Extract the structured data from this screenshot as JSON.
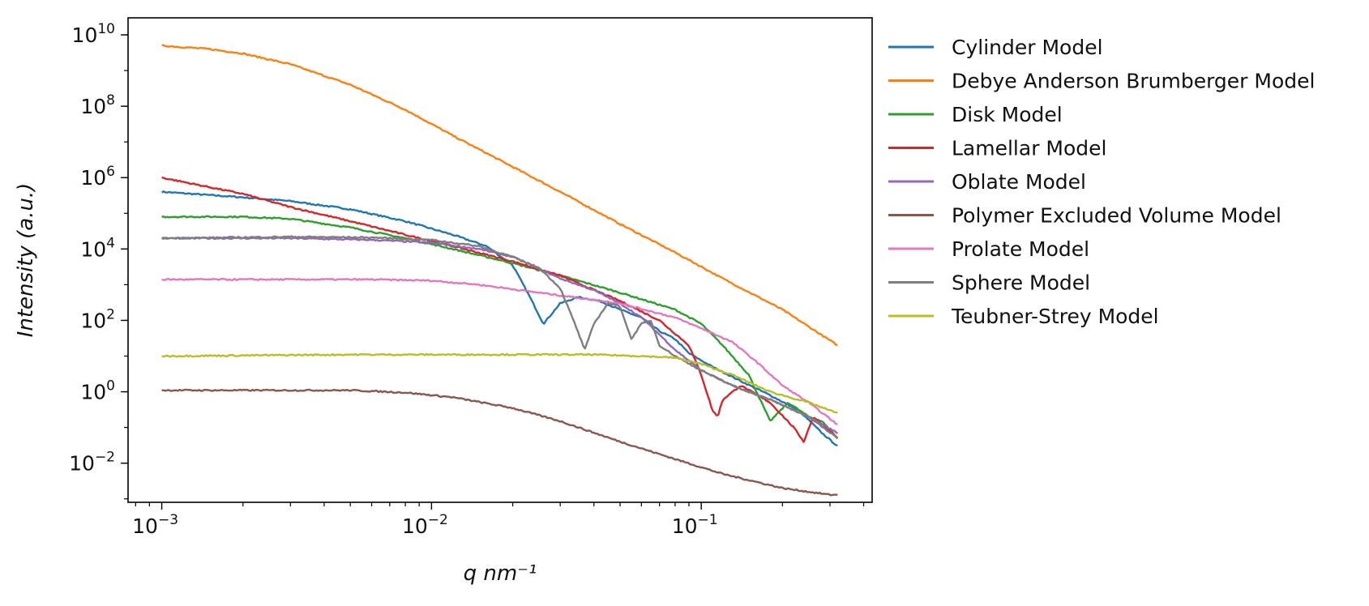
{
  "chart_data": {
    "type": "line",
    "xscale": "log",
    "yscale": "log",
    "xlabel": "q nm⁻¹",
    "ylabel": "Intensity (a.u.)",
    "xlim": [
      0.00075,
      0.43
    ],
    "ylim": [
      0.0008,
      30000000000
    ],
    "xticks": [
      {
        "value": 0.001,
        "base": "10",
        "exp": "−3"
      },
      {
        "value": 0.01,
        "base": "10",
        "exp": "−2"
      },
      {
        "value": 0.1,
        "base": "10",
        "exp": "−1"
      }
    ],
    "yticks": [
      {
        "value": 0.01,
        "base": "10",
        "exp": "−2"
      },
      {
        "value": 1,
        "base": "10",
        "exp": "0"
      },
      {
        "value": 100,
        "base": "10",
        "exp": "2"
      },
      {
        "value": 10000,
        "base": "10",
        "exp": "4"
      },
      {
        "value": 1000000,
        "base": "10",
        "exp": "6"
      },
      {
        "value": 100000000,
        "base": "10",
        "exp": "8"
      },
      {
        "value": 10000000000,
        "base": "10",
        "exp": "10"
      }
    ],
    "grid": false,
    "legend_position": "outside right",
    "series": [
      {
        "name": "Cylinder Model",
        "color": "#1f77b4",
        "x": [
          0.001,
          0.002,
          0.003,
          0.005,
          0.008,
          0.012,
          0.016,
          0.02,
          0.023,
          0.026,
          0.03,
          0.035,
          0.042,
          0.05,
          0.06,
          0.07,
          0.08,
          0.09,
          0.11,
          0.14,
          0.18,
          0.23,
          0.28,
          0.32
        ],
        "y": [
          400000,
          280000,
          220000,
          130000,
          60000,
          25000,
          12000,
          3500,
          500,
          80,
          300,
          450,
          350,
          200,
          120,
          50,
          30,
          12,
          5,
          2,
          0.8,
          0.3,
          0.07,
          0.03
        ]
      },
      {
        "name": "Debye Anderson Brumberger Model",
        "color": "#ff7f0e",
        "x": [
          0.001,
          0.0015,
          0.002,
          0.003,
          0.005,
          0.008,
          0.012,
          0.02,
          0.03,
          0.05,
          0.08,
          0.12,
          0.2,
          0.32
        ],
        "y": [
          5000000000,
          4000000000,
          3000000000,
          1500000000,
          400000000,
          80000000,
          15000000,
          2000000,
          400000,
          50000,
          8000,
          1500,
          200,
          20
        ]
      },
      {
        "name": "Disk Model",
        "color": "#2ca02c",
        "x": [
          0.001,
          0.002,
          0.003,
          0.005,
          0.008,
          0.012,
          0.02,
          0.03,
          0.05,
          0.08,
          0.1,
          0.12,
          0.15,
          0.18,
          0.21,
          0.25,
          0.28,
          0.32
        ],
        "y": [
          80000,
          80000,
          70000,
          40000,
          20000,
          10000,
          4000,
          1800,
          600,
          200,
          80,
          20,
          3,
          0.15,
          0.5,
          0.2,
          0.15,
          0.05
        ]
      },
      {
        "name": "Lamellar Model",
        "color": "#d62728",
        "x": [
          0.001,
          0.002,
          0.003,
          0.005,
          0.008,
          0.012,
          0.02,
          0.03,
          0.05,
          0.07,
          0.09,
          0.1,
          0.11,
          0.115,
          0.12,
          0.14,
          0.18,
          0.22,
          0.24,
          0.26,
          0.3,
          0.32
        ],
        "y": [
          1000000,
          350000,
          150000,
          60000,
          25000,
          12000,
          4500,
          1800,
          350,
          100,
          20,
          3,
          0.3,
          0.2,
          0.6,
          1.5,
          0.5,
          0.1,
          0.04,
          0.2,
          0.08,
          0.05
        ]
      },
      {
        "name": "Oblate Model",
        "color": "#9467bd",
        "x": [
          0.001,
          0.003,
          0.006,
          0.01,
          0.015,
          0.02,
          0.03,
          0.04,
          0.05,
          0.06,
          0.07,
          0.08,
          0.1,
          0.13,
          0.18,
          0.25,
          0.32
        ],
        "y": [
          20000,
          20000,
          18000,
          15000,
          10000,
          6000,
          1500,
          700,
          300,
          120,
          40,
          15,
          4,
          1.5,
          0.6,
          0.2,
          0.07
        ]
      },
      {
        "name": "Polymer Excluded Volume Model",
        "color": "#8c564b",
        "x": [
          0.001,
          0.002,
          0.005,
          0.008,
          0.012,
          0.02,
          0.03,
          0.05,
          0.08,
          0.12,
          0.2,
          0.3,
          0.32
        ],
        "y": [
          1.1,
          1.1,
          1.1,
          0.95,
          0.7,
          0.35,
          0.15,
          0.04,
          0.013,
          0.005,
          0.002,
          0.0013,
          0.0013
        ]
      },
      {
        "name": "Prolate Model",
        "color": "#e377c2",
        "x": [
          0.001,
          0.003,
          0.006,
          0.01,
          0.015,
          0.02,
          0.03,
          0.05,
          0.08,
          0.1,
          0.13,
          0.16,
          0.2,
          0.25,
          0.32
        ],
        "y": [
          1400,
          1400,
          1400,
          1300,
          1000,
          750,
          500,
          300,
          120,
          60,
          25,
          7,
          1.5,
          0.5,
          0.12
        ]
      },
      {
        "name": "Sphere Model",
        "color": "#7f7f7f",
        "x": [
          0.001,
          0.003,
          0.006,
          0.01,
          0.015,
          0.02,
          0.025,
          0.03,
          0.034,
          0.037,
          0.04,
          0.045,
          0.05,
          0.055,
          0.06,
          0.065,
          0.07,
          0.08,
          0.1,
          0.13,
          0.18,
          0.25,
          0.32
        ],
        "y": [
          20000,
          22000,
          21000,
          18000,
          12000,
          6000,
          3000,
          800,
          80,
          15,
          80,
          300,
          250,
          30,
          80,
          100,
          20,
          10,
          4,
          1.5,
          0.6,
          0.2,
          0.05
        ]
      },
      {
        "name": "Teubner-Strey Model",
        "color": "#bcbd22",
        "x": [
          0.001,
          0.005,
          0.01,
          0.02,
          0.04,
          0.06,
          0.08,
          0.1,
          0.13,
          0.18,
          0.25,
          0.32
        ],
        "y": [
          10,
          11,
          11,
          11,
          11,
          10,
          9,
          6,
          3,
          1,
          0.5,
          0.25
        ]
      }
    ]
  }
}
